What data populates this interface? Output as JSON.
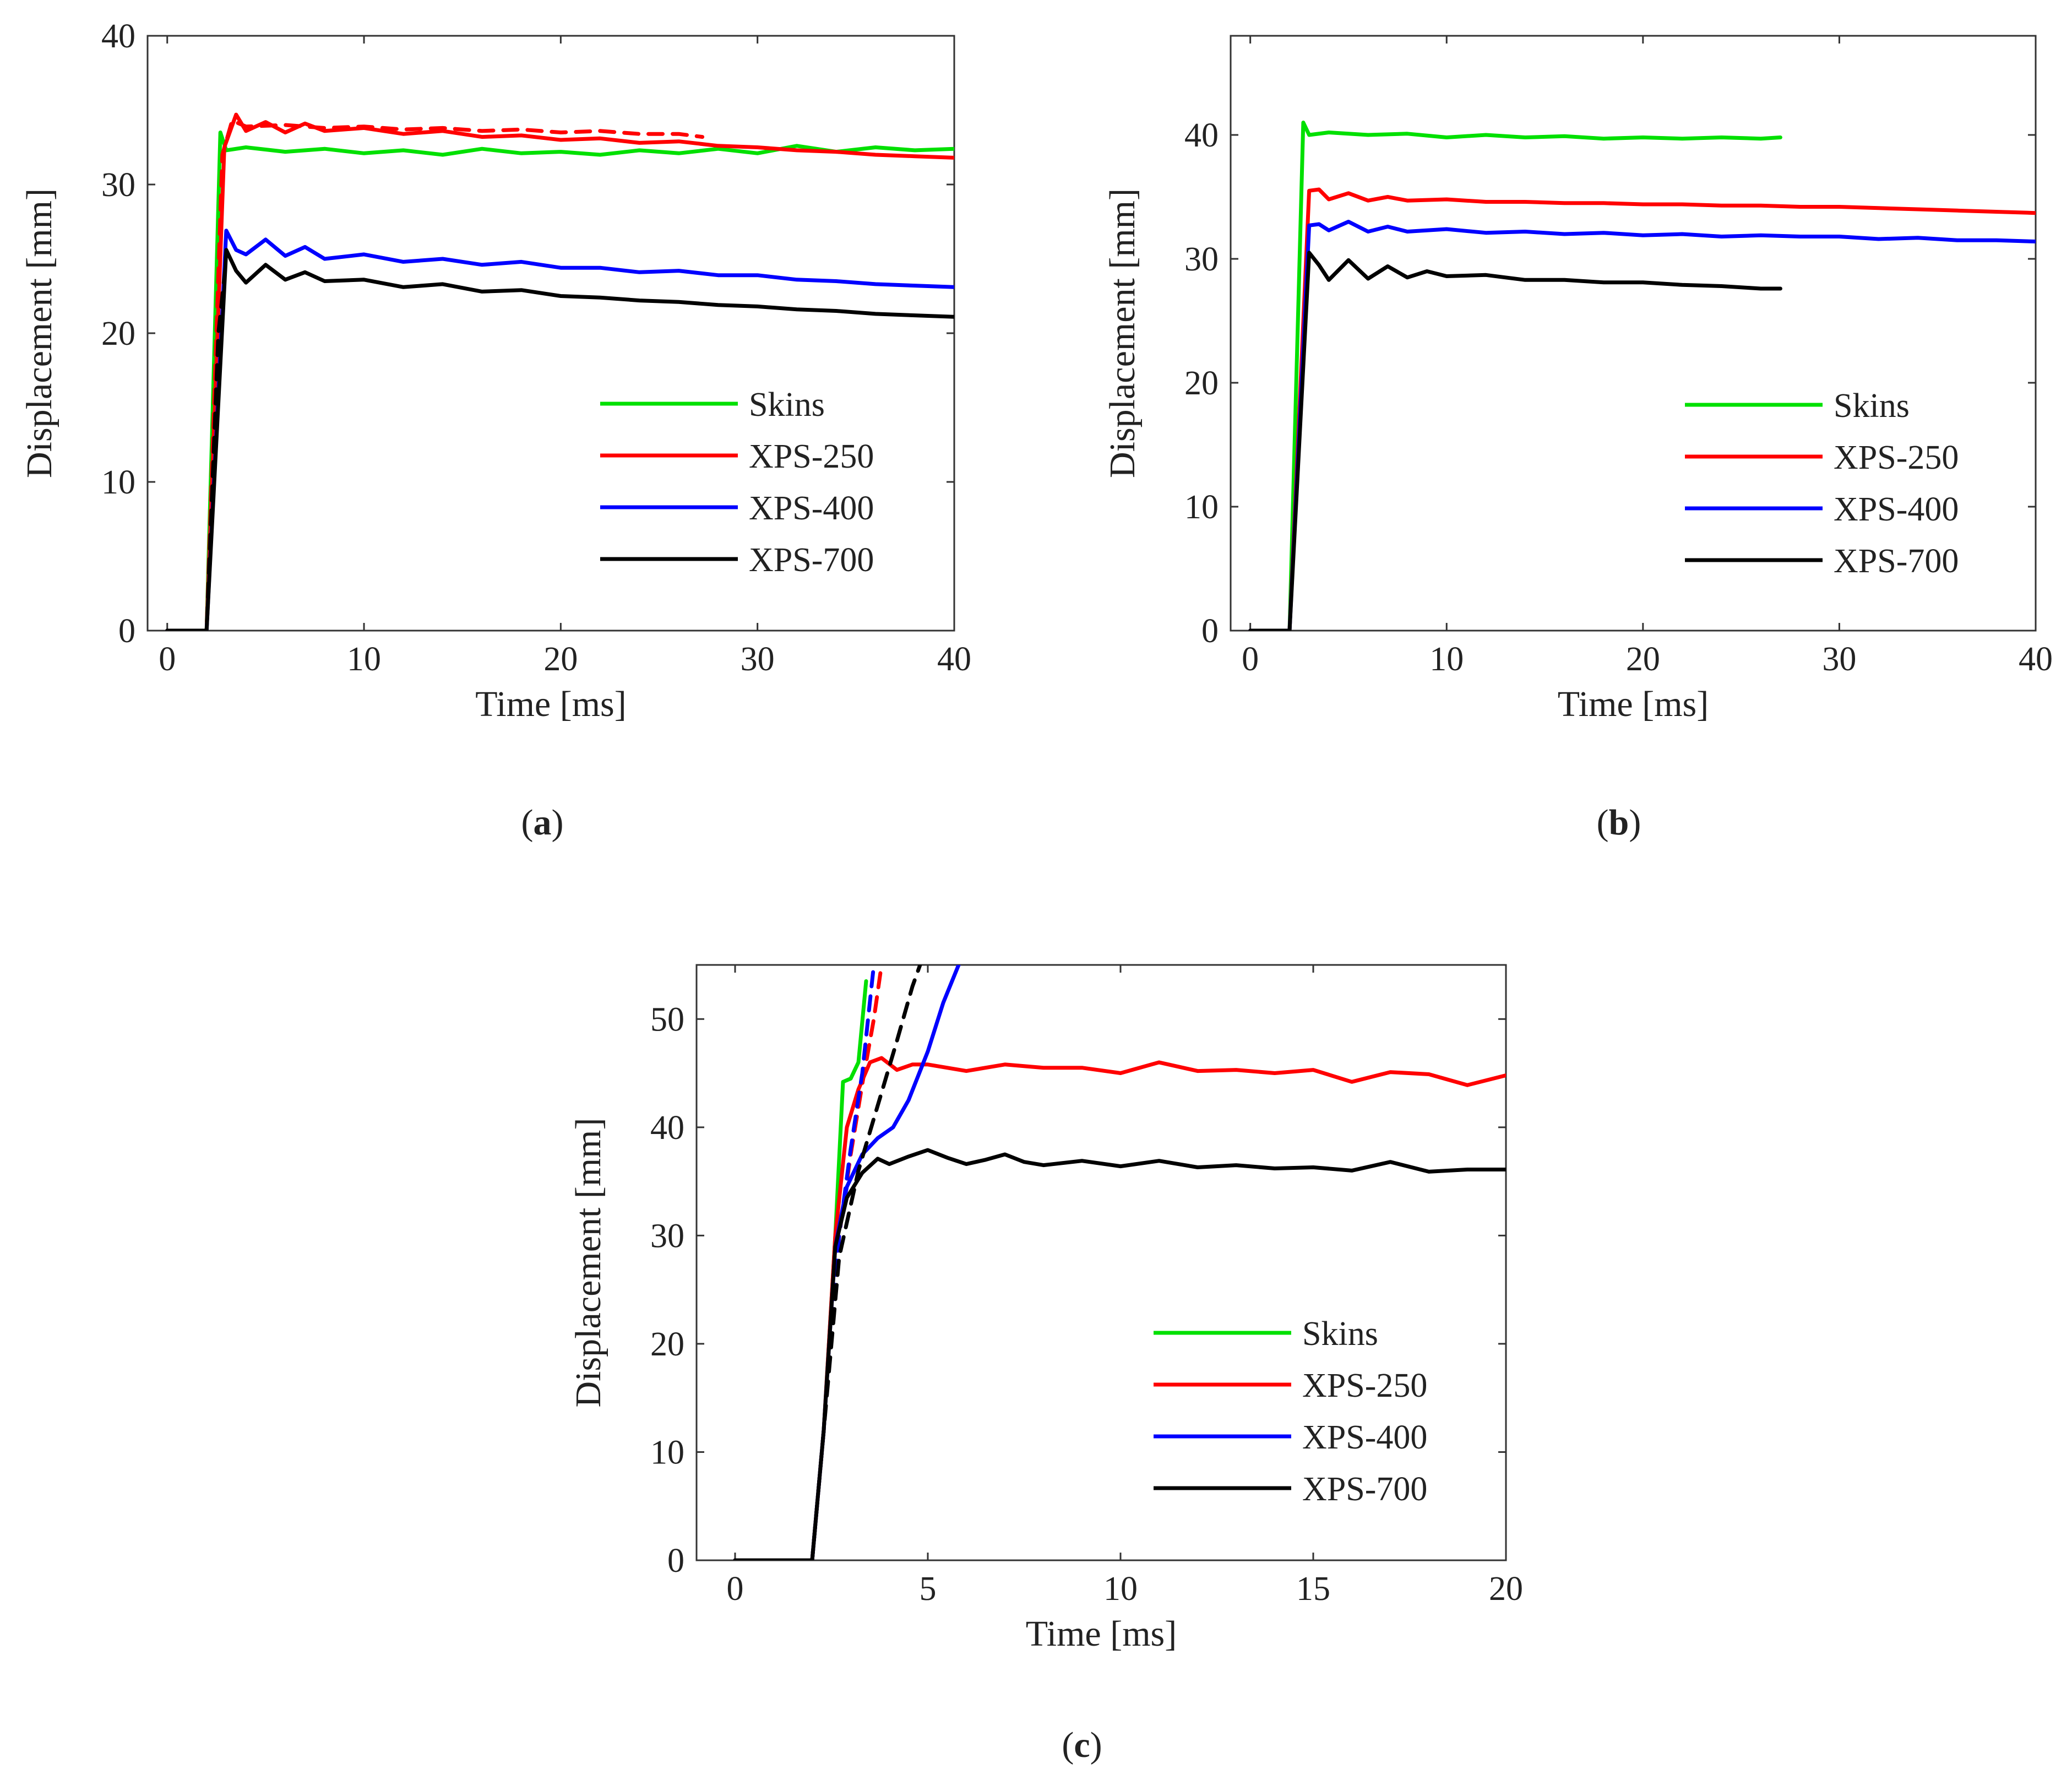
{
  "figure": {
    "captions": [
      {
        "open": "(",
        "letter": "a",
        "close": ")"
      },
      {
        "open": "(",
        "letter": "b",
        "close": ")"
      },
      {
        "open": "(",
        "letter": "c",
        "close": ")"
      }
    ]
  },
  "colors": {
    "skins": "#00e000",
    "xps250": "#ff0000",
    "xps400": "#0000ff",
    "xps700": "#000000"
  },
  "chart_data": [
    {
      "id": "a",
      "type": "line",
      "xlabel": "Time [ms]",
      "ylabel": "Displacement [mm]",
      "xlim": [
        -1,
        40
      ],
      "ylim": [
        0,
        40
      ],
      "xticks": [
        0,
        10,
        20,
        30,
        40
      ],
      "yticks": [
        0,
        10,
        20,
        30,
        40
      ],
      "legend": {
        "placement": "bottom-right",
        "entries": [
          "Skins",
          "XPS-250",
          "XPS-400",
          "XPS-700"
        ]
      },
      "series": [
        {
          "name": "Skins",
          "color_key": "skins",
          "style": "solid",
          "x": [
            0,
            2,
            2.7,
            3,
            4,
            6,
            8,
            10,
            12,
            14,
            16,
            18,
            20,
            22,
            24,
            26,
            28,
            30,
            32,
            34,
            36,
            38,
            40
          ],
          "y": [
            0,
            0,
            33.5,
            32.3,
            32.5,
            32.2,
            32.4,
            32.1,
            32.3,
            32.0,
            32.4,
            32.1,
            32.2,
            32.0,
            32.3,
            32.1,
            32.4,
            32.1,
            32.6,
            32.2,
            32.5,
            32.3,
            32.4
          ]
        },
        {
          "name": "XPS-250",
          "color_key": "xps250",
          "style": "solid",
          "x": [
            0,
            2,
            2.9,
            3.5,
            4,
            5,
            6,
            7,
            8,
            10,
            12,
            14,
            16,
            18,
            20,
            22,
            24,
            26,
            28,
            30,
            32,
            34,
            36,
            38,
            40
          ],
          "y": [
            0,
            0,
            32.5,
            34.7,
            33.6,
            34.2,
            33.5,
            34.1,
            33.6,
            33.8,
            33.4,
            33.6,
            33.2,
            33.3,
            33.0,
            33.1,
            32.8,
            32.9,
            32.6,
            32.5,
            32.3,
            32.2,
            32.0,
            31.9,
            31.8
          ]
        },
        {
          "name": "XPS-250",
          "color_key": "xps250",
          "style": "dashed",
          "legend": false,
          "x": [
            0,
            2,
            2.8,
            3.3,
            4,
            6,
            8,
            10,
            12,
            14,
            16,
            18,
            20,
            22,
            24,
            26,
            27.2
          ],
          "y": [
            0,
            0,
            32.0,
            34.3,
            33.9,
            34.0,
            33.8,
            33.9,
            33.7,
            33.8,
            33.6,
            33.7,
            33.5,
            33.6,
            33.4,
            33.4,
            33.2
          ]
        },
        {
          "name": "XPS-400",
          "color_key": "xps400",
          "style": "solid",
          "x": [
            0,
            2,
            3,
            3.5,
            4,
            5,
            6,
            7,
            8,
            10,
            12,
            14,
            16,
            18,
            20,
            22,
            24,
            26,
            28,
            30,
            32,
            34,
            36,
            38,
            40
          ],
          "y": [
            0,
            0,
            26.9,
            25.6,
            25.3,
            26.3,
            25.2,
            25.8,
            25.0,
            25.3,
            24.8,
            25.0,
            24.6,
            24.8,
            24.4,
            24.4,
            24.1,
            24.2,
            23.9,
            23.9,
            23.6,
            23.5,
            23.3,
            23.2,
            23.1
          ]
        },
        {
          "name": "XPS-700",
          "color_key": "xps700",
          "style": "solid",
          "x": [
            0,
            2,
            3,
            3.5,
            4,
            5,
            6,
            7,
            8,
            10,
            12,
            14,
            16,
            18,
            20,
            22,
            24,
            26,
            28,
            30,
            32,
            34,
            36,
            38,
            40
          ],
          "y": [
            0,
            0,
            25.6,
            24.2,
            23.4,
            24.6,
            23.6,
            24.1,
            23.5,
            23.6,
            23.1,
            23.3,
            22.8,
            22.9,
            22.5,
            22.4,
            22.2,
            22.1,
            21.9,
            21.8,
            21.6,
            21.5,
            21.3,
            21.2,
            21.1
          ]
        },
        {
          "name": "XPS-700",
          "color_key": "xps700",
          "style": "dashed",
          "legend": false,
          "x": [
            0,
            2,
            2.6,
            3
          ],
          "y": [
            0,
            0,
            20.0,
            25.0
          ]
        }
      ]
    },
    {
      "id": "b",
      "type": "line",
      "xlabel": "Time [ms]",
      "ylabel": "Displacement [mm]",
      "xlim": [
        -1,
        40
      ],
      "ylim": [
        0,
        48
      ],
      "xticks": [
        0,
        10,
        20,
        30,
        40
      ],
      "yticks": [
        0,
        10,
        20,
        30,
        40
      ],
      "legend": {
        "placement": "bottom-right",
        "entries": [
          "Skins",
          "XPS-250",
          "XPS-400",
          "XPS-700"
        ]
      },
      "series": [
        {
          "name": "Skins",
          "color_key": "skins",
          "style": "solid",
          "x": [
            0,
            2,
            2.7,
            3,
            4,
            6,
            8,
            10,
            12,
            14,
            16,
            18,
            20,
            22,
            24,
            26,
            27
          ],
          "y": [
            0,
            0,
            41.0,
            40.0,
            40.2,
            40.0,
            40.1,
            39.8,
            40.0,
            39.8,
            39.9,
            39.7,
            39.8,
            39.7,
            39.8,
            39.7,
            39.8
          ]
        },
        {
          "name": "XPS-250",
          "color_key": "xps250",
          "style": "solid",
          "x": [
            0,
            2,
            3,
            3.5,
            4,
            5,
            6,
            7,
            8,
            10,
            12,
            14,
            16,
            18,
            20,
            22,
            24,
            26,
            28,
            30,
            32,
            34,
            36,
            38,
            40
          ],
          "y": [
            0,
            0,
            35.5,
            35.6,
            34.8,
            35.3,
            34.7,
            35.0,
            34.7,
            34.8,
            34.6,
            34.6,
            34.5,
            34.5,
            34.4,
            34.4,
            34.3,
            34.3,
            34.2,
            34.2,
            34.1,
            34.0,
            33.9,
            33.8,
            33.7
          ]
        },
        {
          "name": "XPS-400",
          "color_key": "xps400",
          "style": "solid",
          "x": [
            0,
            2,
            3,
            3.5,
            4,
            5,
            6,
            7,
            8,
            10,
            12,
            14,
            16,
            18,
            20,
            22,
            24,
            26,
            28,
            30,
            32,
            34,
            36,
            38,
            40
          ],
          "y": [
            0,
            0,
            32.7,
            32.8,
            32.3,
            33.0,
            32.2,
            32.6,
            32.2,
            32.4,
            32.1,
            32.2,
            32.0,
            32.1,
            31.9,
            32.0,
            31.8,
            31.9,
            31.8,
            31.8,
            31.6,
            31.7,
            31.5,
            31.5,
            31.4
          ]
        },
        {
          "name": "XPS-700",
          "color_key": "xps700",
          "style": "solid",
          "x": [
            0,
            2,
            3,
            3.5,
            4,
            5,
            6,
            7,
            8,
            9,
            10,
            12,
            14,
            16,
            18,
            20,
            22,
            24,
            26,
            27
          ],
          "y": [
            0,
            0,
            30.5,
            29.5,
            28.3,
            29.9,
            28.4,
            29.4,
            28.5,
            29.0,
            28.6,
            28.7,
            28.3,
            28.3,
            28.1,
            28.1,
            27.9,
            27.8,
            27.6,
            27.6
          ]
        }
      ]
    },
    {
      "id": "c",
      "type": "line",
      "xlabel": "Time [ms]",
      "ylabel": "Displacement [mm]",
      "xlim": [
        -1,
        20
      ],
      "ylim": [
        0,
        55
      ],
      "xticks": [
        0,
        5,
        10,
        15,
        20
      ],
      "yticks": [
        0,
        10,
        20,
        30,
        40,
        50
      ],
      "legend": {
        "placement": "bottom-right",
        "entries": [
          "Skins",
          "XPS-250",
          "XPS-400",
          "XPS-700"
        ]
      },
      "series": [
        {
          "name": "Skins",
          "color_key": "skins",
          "style": "solid",
          "x": [
            0,
            2,
            2.3,
            2.6,
            2.8,
            3.0,
            3.2,
            3.4
          ],
          "y": [
            0,
            0,
            12.0,
            30.0,
            44.2,
            44.5,
            46.0,
            53.5
          ]
        },
        {
          "name": "XPS-250",
          "color_key": "xps250",
          "style": "solid",
          "x": [
            0,
            2,
            2.3,
            2.6,
            2.9,
            3.2,
            3.5,
            3.8,
            4.2,
            4.6,
            5.0,
            6.0,
            7.0,
            8.0,
            9.0,
            10.0,
            11.0,
            12.0,
            13.0,
            14.0,
            15.0,
            16.0,
            17.0,
            18.0,
            19.0,
            20.0
          ],
          "y": [
            0,
            0,
            12.0,
            30.0,
            40.0,
            43.5,
            46.0,
            46.4,
            45.3,
            45.8,
            45.8,
            45.2,
            45.8,
            45.5,
            45.5,
            45.0,
            46.0,
            45.2,
            45.3,
            45.0,
            45.3,
            44.2,
            45.1,
            44.9,
            43.9,
            44.8
          ]
        },
        {
          "name": "XPS-250",
          "color_key": "xps250",
          "style": "dashed",
          "legend": false,
          "x": [
            0,
            2,
            2.3,
            2.7,
            3.0,
            3.3,
            3.6,
            3.8
          ],
          "y": [
            0,
            0,
            12.0,
            30.0,
            37.5,
            44.0,
            50.0,
            55.0
          ]
        },
        {
          "name": "XPS-400",
          "color_key": "xps400",
          "style": "solid",
          "x": [
            0,
            2,
            2.3,
            2.6,
            2.9,
            3.3,
            3.7,
            4.1,
            4.5,
            5.0,
            5.4,
            5.8
          ],
          "y": [
            0,
            0,
            12.0,
            29.0,
            34.5,
            37.5,
            39.0,
            40.0,
            42.5,
            47.0,
            51.5,
            55.0
          ]
        },
        {
          "name": "XPS-400",
          "color_key": "xps400",
          "style": "dashed",
          "legend": false,
          "x": [
            0,
            2,
            2.3,
            2.7,
            3.0,
            3.3,
            3.6
          ],
          "y": [
            0,
            0,
            12.0,
            30.0,
            38.0,
            45.0,
            55.0
          ]
        },
        {
          "name": "XPS-700",
          "color_key": "xps700",
          "style": "solid",
          "x": [
            0,
            2,
            2.3,
            2.6,
            2.9,
            3.3,
            3.7,
            4.0,
            4.5,
            5.0,
            5.5,
            6.0,
            6.5,
            7.0,
            7.5,
            8.0,
            9.0,
            10.0,
            11.0,
            12.0,
            13.0,
            14.0,
            15.0,
            16.0,
            17.0,
            18.0,
            19.0,
            20.0
          ],
          "y": [
            0,
            0,
            12.0,
            29.0,
            33.5,
            35.8,
            37.1,
            36.6,
            37.3,
            37.9,
            37.2,
            36.6,
            37.0,
            37.5,
            36.8,
            36.5,
            36.9,
            36.4,
            36.9,
            36.3,
            36.5,
            36.2,
            36.3,
            36.0,
            36.8,
            35.9,
            36.1,
            36.1
          ]
        },
        {
          "name": "XPS-700",
          "color_key": "xps700",
          "style": "dashed",
          "legend": false,
          "x": [
            0,
            2,
            2.3,
            2.7,
            3.2,
            3.7,
            4.2,
            4.6,
            4.8
          ],
          "y": [
            0,
            0,
            12.0,
            28.0,
            36.0,
            42.0,
            48.0,
            53.0,
            55.0
          ]
        }
      ]
    }
  ]
}
